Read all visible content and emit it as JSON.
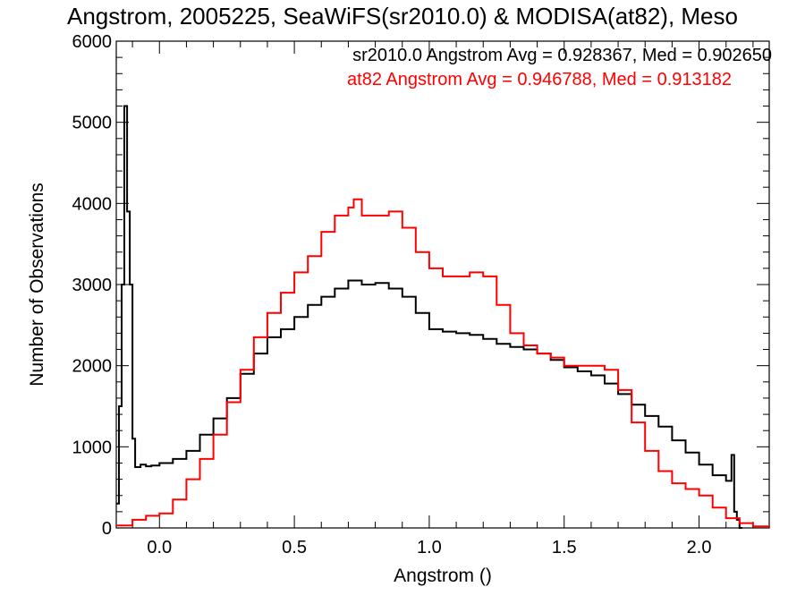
{
  "chart_data": {
    "type": "line",
    "title": "Angstrom, 2005225, SeaWiFS(sr2010.0) & MODISA(at82), Meso",
    "xlabel": "Angstrom ()",
    "ylabel": "Number of Observations",
    "xlim": [
      -0.16,
      2.26
    ],
    "ylim": [
      0,
      6000
    ],
    "x_ticks": [
      "0.0",
      "0.5",
      "1.0",
      "1.5",
      "2.0"
    ],
    "x_tick_values": [
      0.0,
      0.5,
      1.0,
      1.5,
      2.0
    ],
    "y_ticks": [
      "0",
      "1000",
      "2000",
      "3000",
      "4000",
      "5000",
      "6000"
    ],
    "y_tick_values": [
      0,
      1000,
      2000,
      3000,
      4000,
      5000,
      6000
    ],
    "annotations": [
      {
        "text": "sr2010.0 Angstrom Avg = 0.928367, Med = 0.902650",
        "color": "#000000"
      },
      {
        "text": "at82 Angstrom Avg = 0.946788, Med = 0.913182",
        "color": "#ff0000"
      }
    ],
    "series": [
      {
        "name": "sr2010.0",
        "color": "#000000",
        "x": [
          -0.16,
          -0.15,
          -0.14,
          -0.13,
          -0.12,
          -0.11,
          -0.1,
          -0.09,
          -0.07,
          -0.05,
          -0.03,
          0.0,
          0.05,
          0.1,
          0.15,
          0.2,
          0.25,
          0.3,
          0.35,
          0.4,
          0.45,
          0.5,
          0.55,
          0.6,
          0.65,
          0.7,
          0.75,
          0.8,
          0.85,
          0.9,
          0.95,
          1.0,
          1.05,
          1.1,
          1.15,
          1.2,
          1.25,
          1.3,
          1.35,
          1.4,
          1.45,
          1.5,
          1.55,
          1.6,
          1.65,
          1.7,
          1.75,
          1.8,
          1.85,
          1.9,
          1.95,
          2.0,
          2.05,
          2.1,
          2.12,
          2.13,
          2.14,
          2.15,
          2.16
        ],
        "values": [
          300,
          1500,
          3000,
          5200,
          3900,
          3000,
          1100,
          750,
          780,
          760,
          770,
          800,
          850,
          950,
          1150,
          1350,
          1600,
          1900,
          2150,
          2350,
          2450,
          2600,
          2750,
          2850,
          2950,
          3050,
          3000,
          3020,
          2950,
          2850,
          2650,
          2450,
          2420,
          2400,
          2380,
          2330,
          2270,
          2230,
          2200,
          2150,
          2070,
          1980,
          1930,
          1880,
          1780,
          1650,
          1520,
          1380,
          1250,
          1080,
          930,
          780,
          650,
          580,
          900,
          200,
          100,
          0,
          0
        ]
      },
      {
        "name": "at82",
        "color": "#ff0000",
        "x": [
          -0.16,
          -0.1,
          -0.05,
          0.0,
          0.05,
          0.1,
          0.15,
          0.2,
          0.25,
          0.3,
          0.35,
          0.4,
          0.45,
          0.5,
          0.55,
          0.6,
          0.65,
          0.7,
          0.72,
          0.75,
          0.8,
          0.85,
          0.9,
          0.95,
          1.0,
          1.05,
          1.1,
          1.15,
          1.2,
          1.25,
          1.3,
          1.35,
          1.4,
          1.45,
          1.5,
          1.55,
          1.6,
          1.65,
          1.7,
          1.75,
          1.8,
          1.85,
          1.9,
          1.95,
          2.0,
          2.05,
          2.1,
          2.15,
          2.2,
          2.26
        ],
        "values": [
          30,
          100,
          150,
          180,
          350,
          600,
          850,
          1150,
          1550,
          1950,
          2350,
          2650,
          2900,
          3150,
          3350,
          3650,
          3850,
          3950,
          4050,
          3850,
          3850,
          3900,
          3700,
          3400,
          3200,
          3100,
          3100,
          3150,
          3100,
          2750,
          2400,
          2250,
          2150,
          2100,
          2000,
          2000,
          2000,
          1950,
          1700,
          1300,
          950,
          700,
          550,
          480,
          400,
          250,
          120,
          60,
          20,
          10
        ]
      }
    ]
  }
}
